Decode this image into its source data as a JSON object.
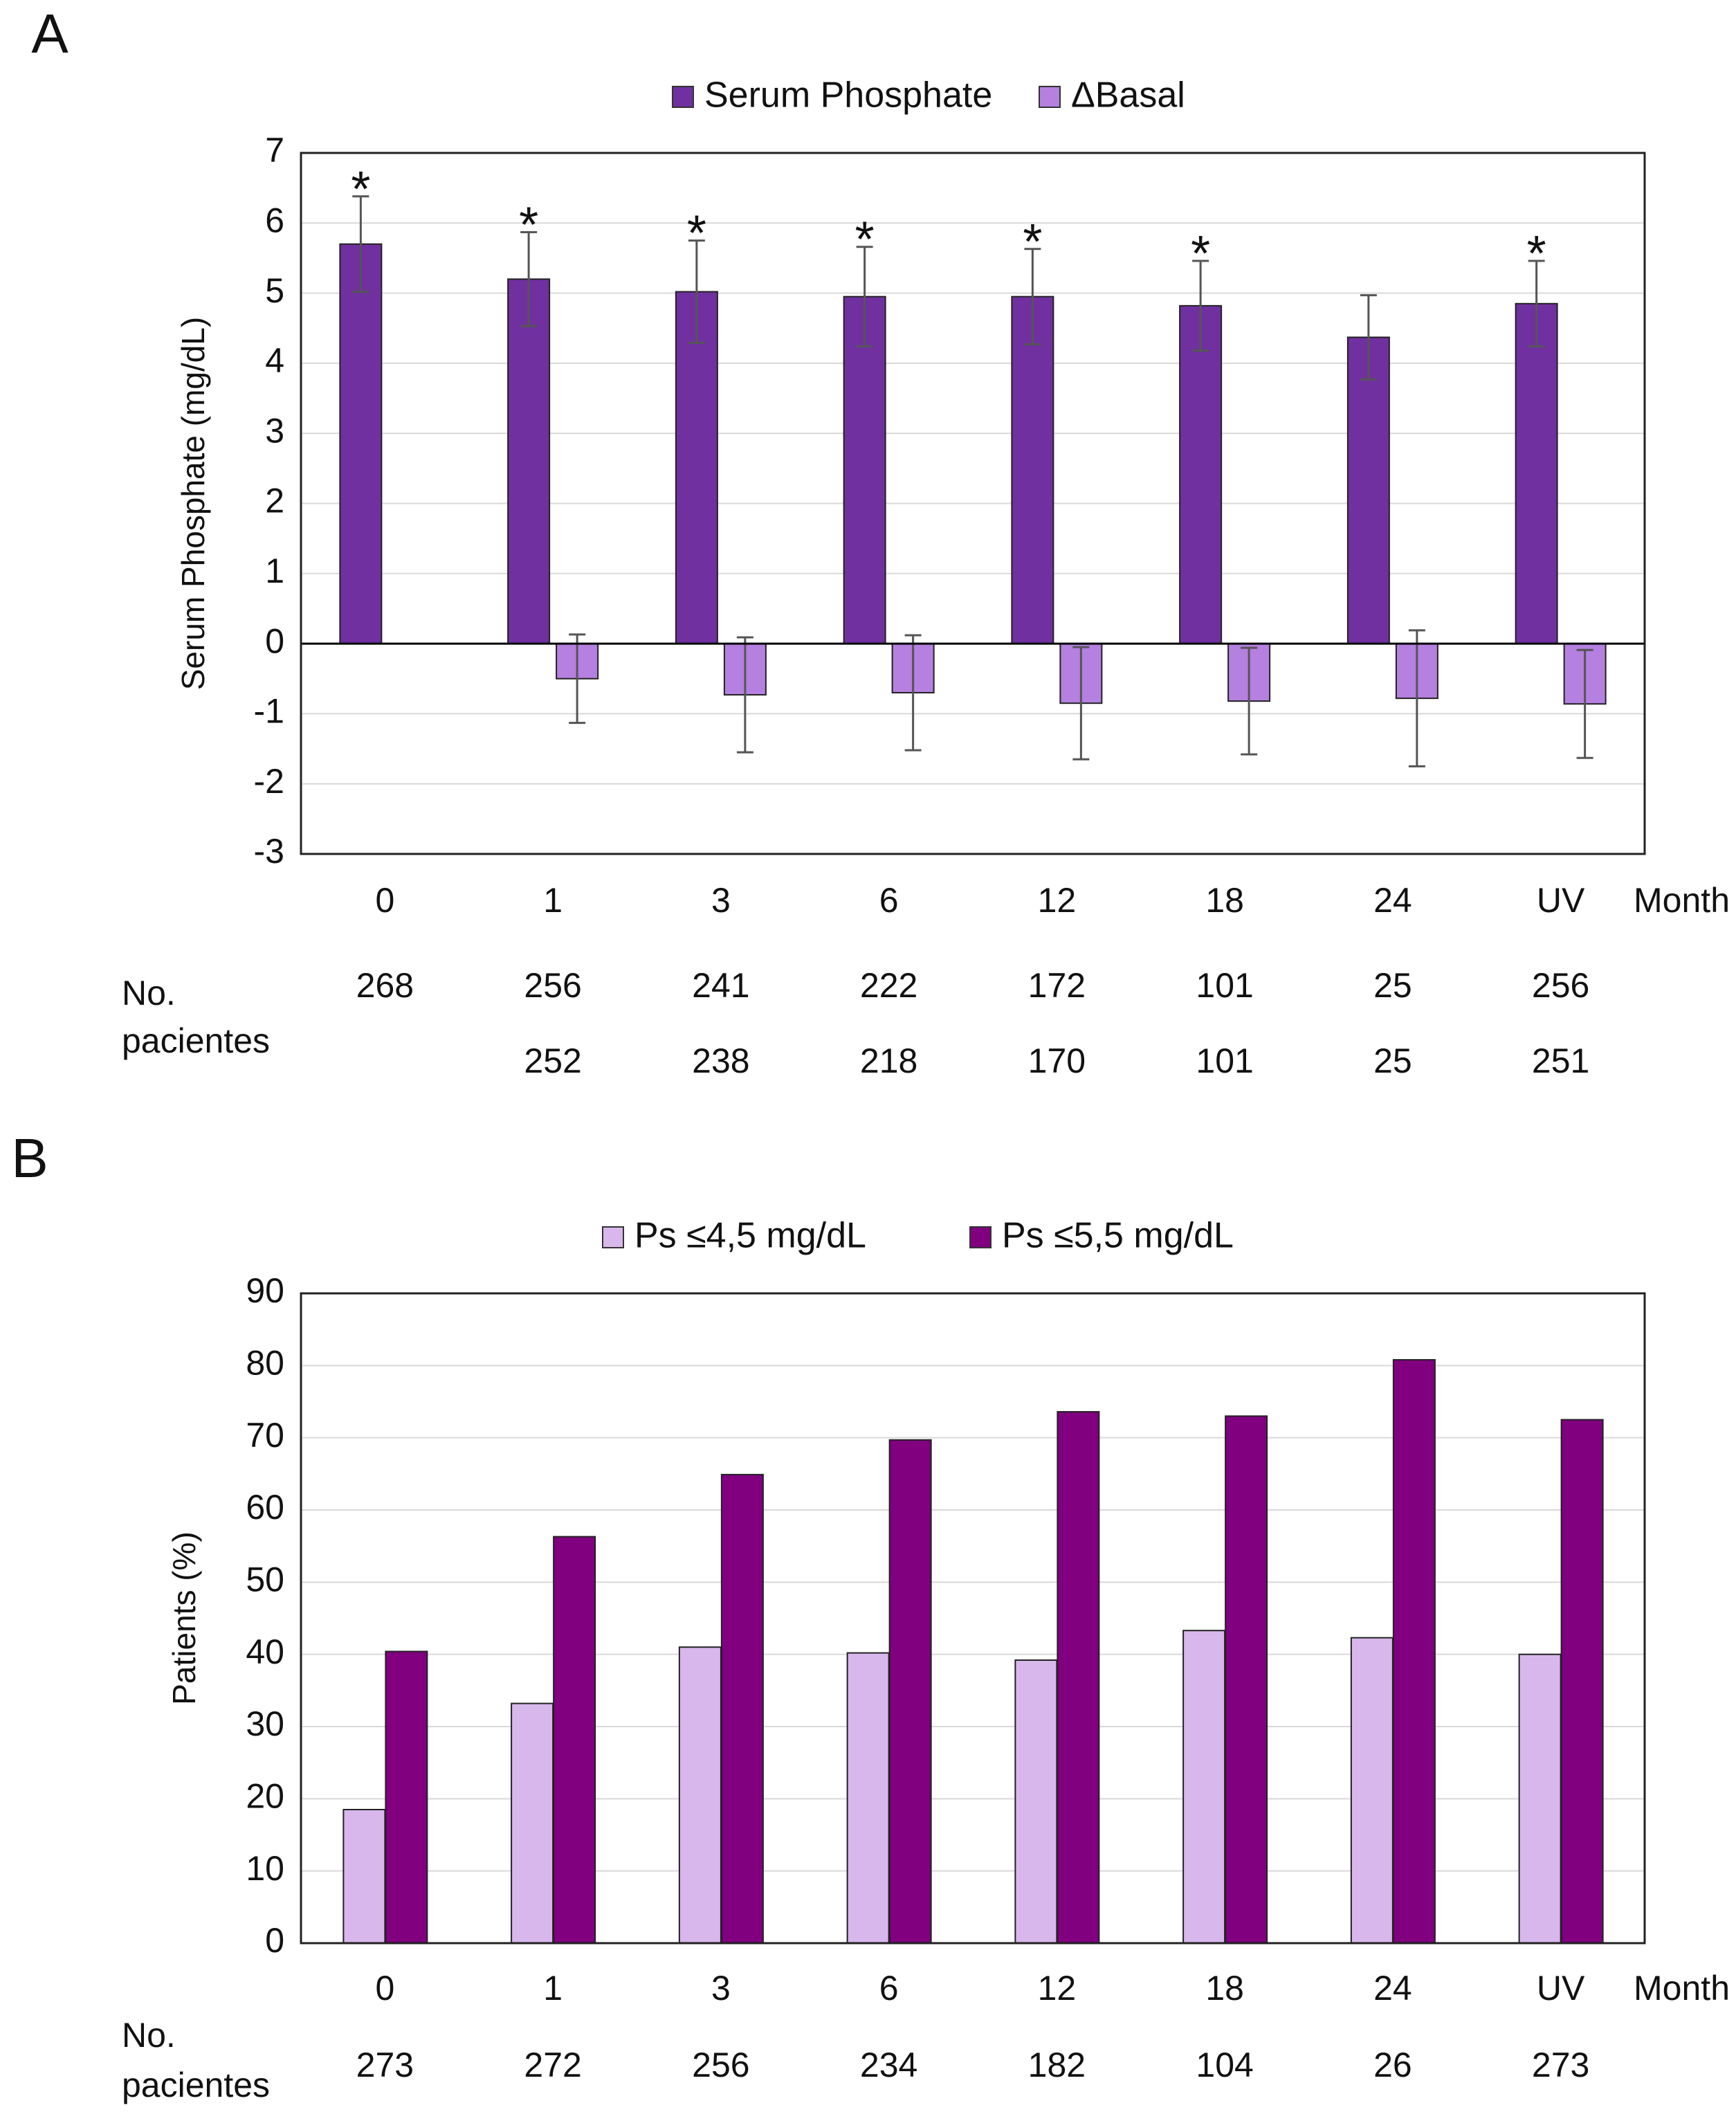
{
  "chart_data": [
    {
      "type": "bar",
      "panel_label": "A",
      "y_label": "Serum Phosphate  (mg/dL)",
      "x_label": "Month",
      "categories": [
        "0",
        "1",
        "3",
        "6",
        "12",
        "18",
        "24",
        "UV"
      ],
      "series": [
        {
          "name": "Serum Phosphate",
          "color": "#7030a0",
          "values": [
            5.7,
            5.2,
            5.02,
            4.95,
            4.95,
            4.82,
            4.37,
            4.85
          ],
          "errors": [
            0.68,
            0.67,
            0.73,
            0.71,
            0.68,
            0.64,
            0.6,
            0.61
          ]
        },
        {
          "name": "ΔBasal",
          "color": "#b580e0",
          "values": [
            null,
            -0.5,
            -0.73,
            -0.7,
            -0.85,
            -0.82,
            -0.78,
            -0.86
          ],
          "errors": [
            null,
            0.63,
            0.82,
            0.82,
            0.8,
            0.76,
            0.97,
            0.77
          ]
        }
      ],
      "significance": [
        "*",
        "*",
        "*",
        "*",
        "*",
        "*",
        null,
        "*"
      ],
      "ylim": [
        -3,
        7
      ],
      "yticks": [
        -3,
        -2,
        -1,
        0,
        1,
        2,
        3,
        4,
        5,
        6,
        7
      ],
      "grid": true,
      "legend": "top",
      "patients_label": [
        "No.",
        "pacientes"
      ],
      "patients": [
        [
          268,
          256,
          241,
          222,
          172,
          101,
          25,
          256
        ],
        [
          null,
          252,
          238,
          218,
          170,
          101,
          25,
          251
        ]
      ]
    },
    {
      "type": "bar",
      "panel_label": "B",
      "y_label": "Patients (%)",
      "x_label": "Month",
      "categories": [
        "0",
        "1",
        "3",
        "6",
        "12",
        "18",
        "24",
        "UV"
      ],
      "series": [
        {
          "name": "Ps ≤4,5 mg/dL",
          "color": "#d8b8ec",
          "values": [
            18.5,
            33.2,
            41,
            40.2,
            39.2,
            43.3,
            42.3,
            40
          ]
        },
        {
          "name": "Ps ≤5,5 mg/dL",
          "color": "#800080",
          "values": [
            40.4,
            56.3,
            64.9,
            69.7,
            73.6,
            73,
            80.8,
            72.5
          ]
        }
      ],
      "ylim": [
        0,
        90
      ],
      "yticks": [
        0,
        10,
        20,
        30,
        40,
        50,
        60,
        70,
        80,
        90
      ],
      "grid": true,
      "legend": "top",
      "patients_label": [
        "No.",
        "pacientes"
      ],
      "patients": [
        [
          273,
          272,
          256,
          234,
          182,
          104,
          26,
          273
        ]
      ]
    }
  ]
}
